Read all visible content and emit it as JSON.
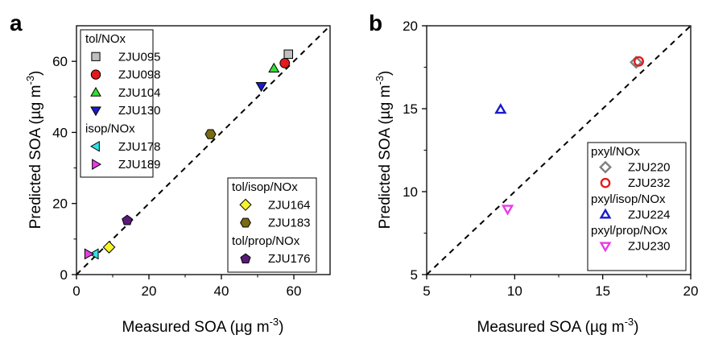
{
  "chart_data": [
    {
      "panel_label": "a",
      "type": "scatter",
      "xlabel": "Measured SOA (µg m",
      "ylabel": "Predicted SOA (µg m",
      "unit_exponent": "-3",
      "xlim": [
        0,
        70
      ],
      "ylim": [
        0,
        70
      ],
      "xticks": [
        "0",
        "20",
        "40",
        "60"
      ],
      "yticks": [
        "0",
        "20",
        "40",
        "60"
      ],
      "reference_line": "1:1 dashed",
      "grid": false,
      "legends": [
        {
          "placement": "top-left",
          "groups": [
            {
              "title": "tol/NOx",
              "series": [
                {
                  "name": "ZJU095",
                  "marker": "square",
                  "color": "#bfbfbf",
                  "x": 58.5,
                  "y": 62
                },
                {
                  "name": "ZJU098",
                  "marker": "circle",
                  "color": "#e41a1c",
                  "x": 57.5,
                  "y": 59.5
                },
                {
                  "name": "ZJU104",
                  "marker": "triangle-up",
                  "color": "#33dd33",
                  "x": 54.5,
                  "y": 58
                },
                {
                  "name": "ZJU130",
                  "marker": "triangle-down",
                  "color": "#1a1acc",
                  "x": 51,
                  "y": 53
                }
              ]
            },
            {
              "title": "isop/NOx",
              "series": [
                {
                  "name": "ZJU178",
                  "marker": "triangle-left",
                  "color": "#33e0e8",
                  "x": 5,
                  "y": 5.8
                },
                {
                  "name": "ZJU189",
                  "marker": "triangle-right",
                  "color": "#e63ce6",
                  "x": 3.3,
                  "y": 5.8
                }
              ]
            }
          ]
        },
        {
          "placement": "bottom-right",
          "groups": [
            {
              "title": "tol/isop/NOx",
              "series": [
                {
                  "name": "ZJU164",
                  "marker": "diamond",
                  "color": "#f5f52a",
                  "x": 9,
                  "y": 7.7
                },
                {
                  "name": "ZJU183",
                  "marker": "hexagon",
                  "color": "#7a6a14",
                  "x": 37,
                  "y": 39.5
                }
              ]
            },
            {
              "title": "tol/prop/NOx",
              "series": [
                {
                  "name": "ZJU176",
                  "marker": "pentagon",
                  "color": "#5a1a7a",
                  "x": 14,
                  "y": 15.3
                }
              ]
            }
          ]
        }
      ]
    },
    {
      "panel_label": "b",
      "type": "scatter",
      "xlabel": "Measured SOA (µg m",
      "ylabel": "Predicted SOA (µg m",
      "unit_exponent": "-3",
      "xlim": [
        5,
        20
      ],
      "ylim": [
        5,
        20
      ],
      "xticks": [
        "5",
        "10",
        "15",
        "20"
      ],
      "yticks": [
        "5",
        "10",
        "15",
        "20"
      ],
      "reference_line": "1:1 dashed",
      "grid": false,
      "legends": [
        {
          "placement": "bottom-right",
          "groups": [
            {
              "title": "pxyl/NOx",
              "series": [
                {
                  "name": "ZJU220",
                  "marker": "diamond-open",
                  "color": "#7f7f7f",
                  "x": 16.9,
                  "y": 17.8
                },
                {
                  "name": "ZJU232",
                  "marker": "circle-open",
                  "color": "#e41a1c",
                  "x": 17.05,
                  "y": 17.85
                }
              ]
            },
            {
              "title": "pxyl/isop/NOx",
              "series": [
                {
                  "name": "ZJU224",
                  "marker": "triangle-up-open",
                  "color": "#1a1acc",
                  "x": 9.2,
                  "y": 14.95
                }
              ]
            },
            {
              "title": "pxyl/prop/NOx",
              "series": [
                {
                  "name": "ZJU230",
                  "marker": "triangle-down-open",
                  "color": "#e63ce6",
                  "x": 9.6,
                  "y": 8.95
                }
              ]
            }
          ]
        }
      ]
    }
  ]
}
